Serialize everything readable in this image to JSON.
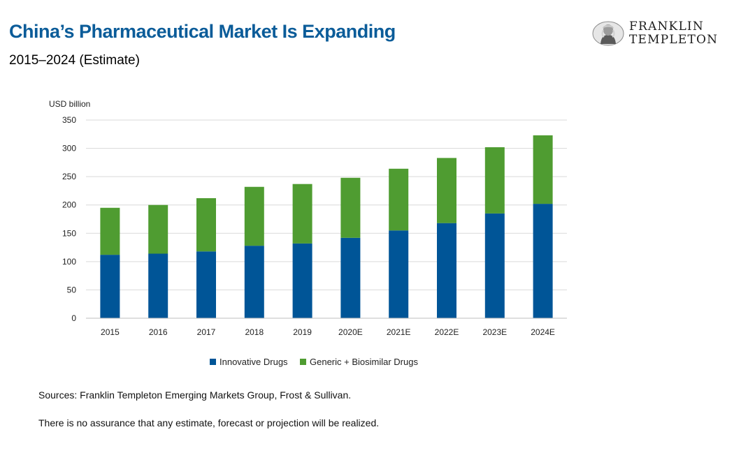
{
  "header": {
    "title": "China’s Pharmaceutical Market Is Expanding",
    "subtitle": "2015–2024 (Estimate)"
  },
  "logo": {
    "line1": "FRANKLIN",
    "line2": "TEMPLETON",
    "emblem_icon": "benjamin-franklin-portrait-icon"
  },
  "chart_data": {
    "type": "bar",
    "stacked": true,
    "categories": [
      "2015",
      "2016",
      "2017",
      "2018",
      "2019",
      "2020E",
      "2021E",
      "2022E",
      "2023E",
      "2024E"
    ],
    "series": [
      {
        "name": "Innovative Drugs",
        "color": "#005597",
        "values": [
          112,
          114,
          118,
          128,
          132,
          142,
          155,
          168,
          185,
          202
        ]
      },
      {
        "name": "Generic + Biosimilar Drugs",
        "color": "#4f9c31",
        "values": [
          83,
          86,
          94,
          104,
          105,
          106,
          109,
          115,
          117,
          121
        ]
      }
    ],
    "ylabel": "USD billion",
    "ylim": [
      0,
      350
    ],
    "yticks": [
      0,
      50,
      100,
      150,
      200,
      250,
      300,
      350
    ],
    "grid": true,
    "legend_position": "bottom"
  },
  "footer": {
    "source": "Sources: Franklin Templeton Emerging Markets Group, Frost & Sullivan.",
    "disclaimer": "There is no assurance that any estimate, forecast or projection will be realized."
  }
}
